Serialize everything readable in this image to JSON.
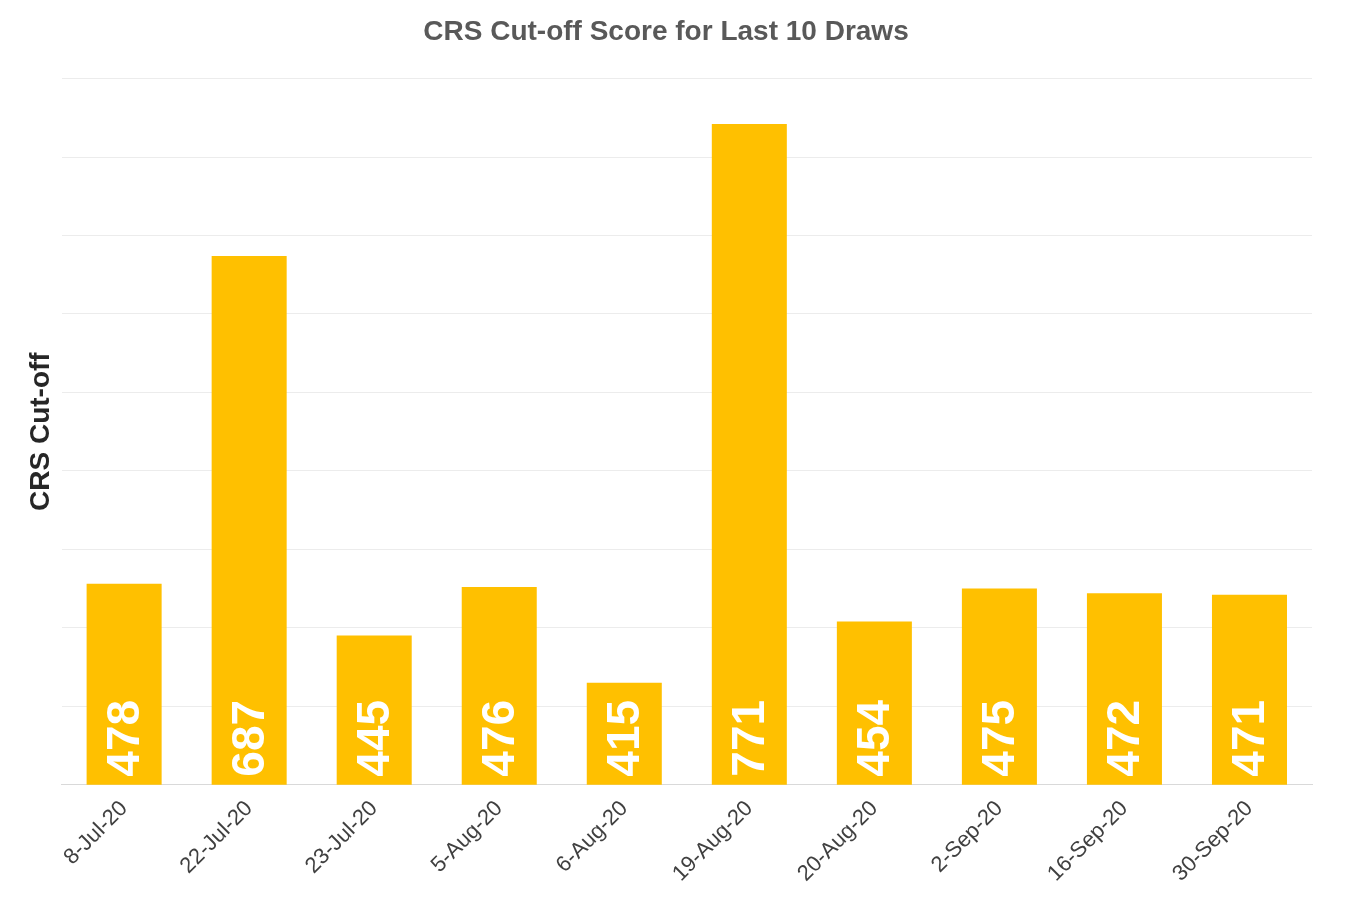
{
  "chart_data": {
    "type": "bar",
    "title": "CRS Cut-off Score for Last 10 Draws",
    "ylabel": "CRS Cut-off",
    "categories": [
      "8-Jul-20",
      "22-Jul-20",
      "23-Jul-20",
      "5-Aug-20",
      "6-Aug-20",
      "19-Aug-20",
      "20-Aug-20",
      "2-Sep-20",
      "16-Sep-20",
      "30-Sep-20"
    ],
    "values": [
      478,
      687,
      445,
      476,
      415,
      771,
      454,
      475,
      472,
      471
    ],
    "color": "#ffc000",
    "ylim": [
      350,
      800
    ],
    "grid": "y",
    "legend": false,
    "data_labels": true
  }
}
